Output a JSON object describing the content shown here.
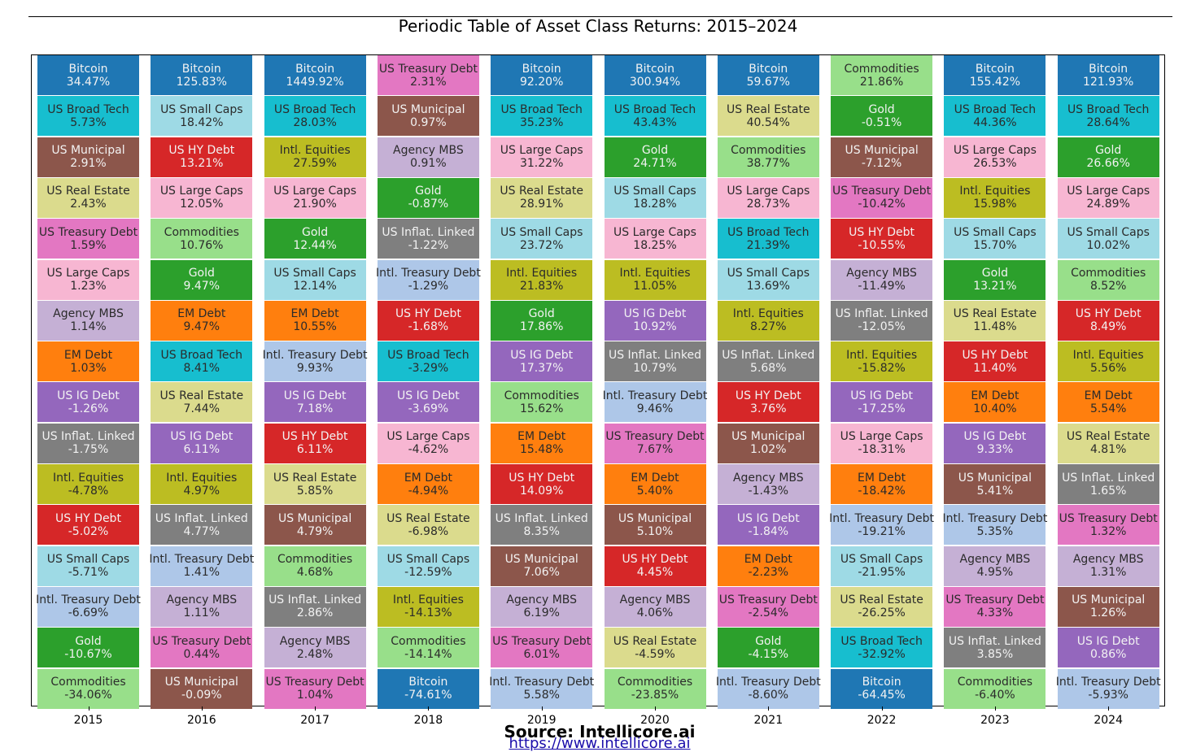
{
  "colors": {
    "Bitcoin": "#1f77b4",
    "US Broad Tech": "#17becf",
    "US Small Caps": "#9edae5",
    "US Municipal": "#8c564b",
    "US HY Debt": "#d62728",
    "Intl. Equities": "#bcbd22",
    "US Real Estate": "#dbdb8d",
    "US Large Caps": "#f7b6d2",
    "US Treasury Debt": "#e377c2",
    "Commodities": "#98df8a",
    "Gold": "#2ca02c",
    "Agency MBS": "#c5b0d5",
    "EM Debt": "#ff7f0e",
    "US IG Debt": "#9467bd",
    "US Inflat. Linked": "#7f7f7f",
    "Intl. Treasury Debt": "#aec7e8"
  },
  "chart_data": {
    "type": "table",
    "title": "Periodic Table of Asset Class Returns: 2015–2024",
    "source": "Source: Intellicore.ai",
    "url": "https://www.intellicore.ai",
    "columns": [
      {
        "year": "2015",
        "cells": [
          {
            "name": "Bitcoin",
            "value": "34.47%"
          },
          {
            "name": "US Broad Tech",
            "value": "5.73%"
          },
          {
            "name": "US Municipal",
            "value": "2.91%"
          },
          {
            "name": "US Real Estate",
            "value": "2.43%"
          },
          {
            "name": "US Treasury Debt",
            "value": "1.59%"
          },
          {
            "name": "US Large Caps",
            "value": "1.23%"
          },
          {
            "name": "Agency MBS",
            "value": "1.14%"
          },
          {
            "name": "EM Debt",
            "value": "1.03%"
          },
          {
            "name": "US IG Debt",
            "value": "-1.26%"
          },
          {
            "name": "US Inflat. Linked",
            "value": "-1.75%"
          },
          {
            "name": "Intl. Equities",
            "value": "-4.78%"
          },
          {
            "name": "US HY Debt",
            "value": "-5.02%"
          },
          {
            "name": "US Small Caps",
            "value": "-5.71%"
          },
          {
            "name": "Intl. Treasury Debt",
            "value": "-6.69%"
          },
          {
            "name": "Gold",
            "value": "-10.67%"
          },
          {
            "name": "Commodities",
            "value": "-34.06%"
          }
        ]
      },
      {
        "year": "2016",
        "cells": [
          {
            "name": "Bitcoin",
            "value": "125.83%"
          },
          {
            "name": "US Small Caps",
            "value": "18.42%"
          },
          {
            "name": "US HY Debt",
            "value": "13.21%"
          },
          {
            "name": "US Large Caps",
            "value": "12.05%"
          },
          {
            "name": "Commodities",
            "value": "10.76%"
          },
          {
            "name": "Gold",
            "value": "9.47%"
          },
          {
            "name": "EM Debt",
            "value": "9.47%"
          },
          {
            "name": "US Broad Tech",
            "value": "8.41%"
          },
          {
            "name": "US Real Estate",
            "value": "7.44%"
          },
          {
            "name": "US IG Debt",
            "value": "6.11%"
          },
          {
            "name": "Intl. Equities",
            "value": "4.97%"
          },
          {
            "name": "US Inflat. Linked",
            "value": "4.77%"
          },
          {
            "name": "Intl. Treasury Debt",
            "value": "1.41%"
          },
          {
            "name": "Agency MBS",
            "value": "1.11%"
          },
          {
            "name": "US Treasury Debt",
            "value": "0.44%"
          },
          {
            "name": "US Municipal",
            "value": "-0.09%"
          }
        ]
      },
      {
        "year": "2017",
        "cells": [
          {
            "name": "Bitcoin",
            "value": "1449.92%"
          },
          {
            "name": "US Broad Tech",
            "value": "28.03%"
          },
          {
            "name": "Intl. Equities",
            "value": "27.59%"
          },
          {
            "name": "US Large Caps",
            "value": "21.90%"
          },
          {
            "name": "Gold",
            "value": "12.44%"
          },
          {
            "name": "US Small Caps",
            "value": "12.14%"
          },
          {
            "name": "EM Debt",
            "value": "10.55%"
          },
          {
            "name": "Intl. Treasury Debt",
            "value": "9.93%"
          },
          {
            "name": "US IG Debt",
            "value": "7.18%"
          },
          {
            "name": "US HY Debt",
            "value": "6.11%"
          },
          {
            "name": "US Real Estate",
            "value": "5.85%"
          },
          {
            "name": "US Municipal",
            "value": "4.79%"
          },
          {
            "name": "Commodities",
            "value": "4.68%"
          },
          {
            "name": "US Inflat. Linked",
            "value": "2.86%"
          },
          {
            "name": "Agency MBS",
            "value": "2.48%"
          },
          {
            "name": "US Treasury Debt",
            "value": "1.04%"
          }
        ]
      },
      {
        "year": "2018",
        "cells": [
          {
            "name": "US Treasury Debt",
            "value": "2.31%"
          },
          {
            "name": "US Municipal",
            "value": "0.97%"
          },
          {
            "name": "Agency MBS",
            "value": "0.91%"
          },
          {
            "name": "Gold",
            "value": "-0.87%"
          },
          {
            "name": "US Inflat. Linked",
            "value": "-1.22%"
          },
          {
            "name": "Intl. Treasury Debt",
            "value": "-1.29%"
          },
          {
            "name": "US HY Debt",
            "value": "-1.68%"
          },
          {
            "name": "US Broad Tech",
            "value": "-3.29%"
          },
          {
            "name": "US IG Debt",
            "value": "-3.69%"
          },
          {
            "name": "US Large Caps",
            "value": "-4.62%"
          },
          {
            "name": "EM Debt",
            "value": "-4.94%"
          },
          {
            "name": "US Real Estate",
            "value": "-6.98%"
          },
          {
            "name": "US Small Caps",
            "value": "-12.59%"
          },
          {
            "name": "Intl. Equities",
            "value": "-14.13%"
          },
          {
            "name": "Commodities",
            "value": "-14.14%"
          },
          {
            "name": "Bitcoin",
            "value": "-74.61%"
          }
        ]
      },
      {
        "year": "2019",
        "cells": [
          {
            "name": "Bitcoin",
            "value": "92.20%"
          },
          {
            "name": "US Broad Tech",
            "value": "35.23%"
          },
          {
            "name": "US Large Caps",
            "value": "31.22%"
          },
          {
            "name": "US Real Estate",
            "value": "28.91%"
          },
          {
            "name": "US Small Caps",
            "value": "23.72%"
          },
          {
            "name": "Intl. Equities",
            "value": "21.83%"
          },
          {
            "name": "Gold",
            "value": "17.86%"
          },
          {
            "name": "US IG Debt",
            "value": "17.37%"
          },
          {
            "name": "Commodities",
            "value": "15.62%"
          },
          {
            "name": "EM Debt",
            "value": "15.48%"
          },
          {
            "name": "US HY Debt",
            "value": "14.09%"
          },
          {
            "name": "US Inflat. Linked",
            "value": "8.35%"
          },
          {
            "name": "US Municipal",
            "value": "7.06%"
          },
          {
            "name": "Agency MBS",
            "value": "6.19%"
          },
          {
            "name": "US Treasury Debt",
            "value": "6.01%"
          },
          {
            "name": "Intl. Treasury Debt",
            "value": "5.58%"
          }
        ]
      },
      {
        "year": "2020",
        "cells": [
          {
            "name": "Bitcoin",
            "value": "300.94%"
          },
          {
            "name": "US Broad Tech",
            "value": "43.43%"
          },
          {
            "name": "Gold",
            "value": "24.71%"
          },
          {
            "name": "US Small Caps",
            "value": "18.28%"
          },
          {
            "name": "US Large Caps",
            "value": "18.25%"
          },
          {
            "name": "Intl. Equities",
            "value": "11.05%"
          },
          {
            "name": "US IG Debt",
            "value": "10.92%"
          },
          {
            "name": "US Inflat. Linked",
            "value": "10.79%"
          },
          {
            "name": "Intl. Treasury Debt",
            "value": "9.46%"
          },
          {
            "name": "US Treasury Debt",
            "value": "7.67%"
          },
          {
            "name": "EM Debt",
            "value": "5.40%"
          },
          {
            "name": "US Municipal",
            "value": "5.10%"
          },
          {
            "name": "US HY Debt",
            "value": "4.45%"
          },
          {
            "name": "Agency MBS",
            "value": "4.06%"
          },
          {
            "name": "US Real Estate",
            "value": "-4.59%"
          },
          {
            "name": "Commodities",
            "value": "-23.85%"
          }
        ]
      },
      {
        "year": "2021",
        "cells": [
          {
            "name": "Bitcoin",
            "value": "59.67%"
          },
          {
            "name": "US Real Estate",
            "value": "40.54%"
          },
          {
            "name": "Commodities",
            "value": "38.77%"
          },
          {
            "name": "US Large Caps",
            "value": "28.73%"
          },
          {
            "name": "US Broad Tech",
            "value": "21.39%"
          },
          {
            "name": "US Small Caps",
            "value": "13.69%"
          },
          {
            "name": "Intl. Equities",
            "value": "8.27%"
          },
          {
            "name": "US Inflat. Linked",
            "value": "5.68%"
          },
          {
            "name": "US HY Debt",
            "value": "3.76%"
          },
          {
            "name": "US Municipal",
            "value": "1.02%"
          },
          {
            "name": "Agency MBS",
            "value": "-1.43%"
          },
          {
            "name": "US IG Debt",
            "value": "-1.84%"
          },
          {
            "name": "EM Debt",
            "value": "-2.23%"
          },
          {
            "name": "US Treasury Debt",
            "value": "-2.54%"
          },
          {
            "name": "Gold",
            "value": "-4.15%"
          },
          {
            "name": "Intl. Treasury Debt",
            "value": "-8.60%"
          }
        ]
      },
      {
        "year": "2022",
        "cells": [
          {
            "name": "Commodities",
            "value": "21.86%"
          },
          {
            "name": "Gold",
            "value": "-0.51%"
          },
          {
            "name": "US Municipal",
            "value": "-7.12%"
          },
          {
            "name": "US Treasury Debt",
            "value": "-10.42%"
          },
          {
            "name": "US HY Debt",
            "value": "-10.55%"
          },
          {
            "name": "Agency MBS",
            "value": "-11.49%"
          },
          {
            "name": "US Inflat. Linked",
            "value": "-12.05%"
          },
          {
            "name": "Intl. Equities",
            "value": "-15.82%"
          },
          {
            "name": "US IG Debt",
            "value": "-17.25%"
          },
          {
            "name": "US Large Caps",
            "value": "-18.31%"
          },
          {
            "name": "EM Debt",
            "value": "-18.42%"
          },
          {
            "name": "Intl. Treasury Debt",
            "value": "-19.21%"
          },
          {
            "name": "US Small Caps",
            "value": "-21.95%"
          },
          {
            "name": "US Real Estate",
            "value": "-26.25%"
          },
          {
            "name": "US Broad Tech",
            "value": "-32.92%"
          },
          {
            "name": "Bitcoin",
            "value": "-64.45%"
          }
        ]
      },
      {
        "year": "2023",
        "cells": [
          {
            "name": "Bitcoin",
            "value": "155.42%"
          },
          {
            "name": "US Broad Tech",
            "value": "44.36%"
          },
          {
            "name": "US Large Caps",
            "value": "26.53%"
          },
          {
            "name": "Intl. Equities",
            "value": "15.98%"
          },
          {
            "name": "US Small Caps",
            "value": "15.70%"
          },
          {
            "name": "Gold",
            "value": "13.21%"
          },
          {
            "name": "US Real Estate",
            "value": "11.48%"
          },
          {
            "name": "US HY Debt",
            "value": "11.40%"
          },
          {
            "name": "EM Debt",
            "value": "10.40%"
          },
          {
            "name": "US IG Debt",
            "value": "9.33%"
          },
          {
            "name": "US Municipal",
            "value": "5.41%"
          },
          {
            "name": "Intl. Treasury Debt",
            "value": "5.35%"
          },
          {
            "name": "Agency MBS",
            "value": "4.95%"
          },
          {
            "name": "US Treasury Debt",
            "value": "4.33%"
          },
          {
            "name": "US Inflat. Linked",
            "value": "3.85%"
          },
          {
            "name": "Commodities",
            "value": "-6.40%"
          }
        ]
      },
      {
        "year": "2024",
        "cells": [
          {
            "name": "Bitcoin",
            "value": "121.93%"
          },
          {
            "name": "US Broad Tech",
            "value": "28.64%"
          },
          {
            "name": "Gold",
            "value": "26.66%"
          },
          {
            "name": "US Large Caps",
            "value": "24.89%"
          },
          {
            "name": "US Small Caps",
            "value": "10.02%"
          },
          {
            "name": "Commodities",
            "value": "8.52%"
          },
          {
            "name": "US HY Debt",
            "value": "8.49%"
          },
          {
            "name": "Intl. Equities",
            "value": "5.56%"
          },
          {
            "name": "EM Debt",
            "value": "5.54%"
          },
          {
            "name": "US Real Estate",
            "value": "4.81%"
          },
          {
            "name": "US Inflat. Linked",
            "value": "1.65%"
          },
          {
            "name": "US Treasury Debt",
            "value": "1.32%"
          },
          {
            "name": "Agency MBS",
            "value": "1.31%"
          },
          {
            "name": "US Municipal",
            "value": "1.26%"
          },
          {
            "name": "US IG Debt",
            "value": "0.86%"
          },
          {
            "name": "Intl. Treasury Debt",
            "value": "-5.93%"
          }
        ]
      }
    ]
  }
}
